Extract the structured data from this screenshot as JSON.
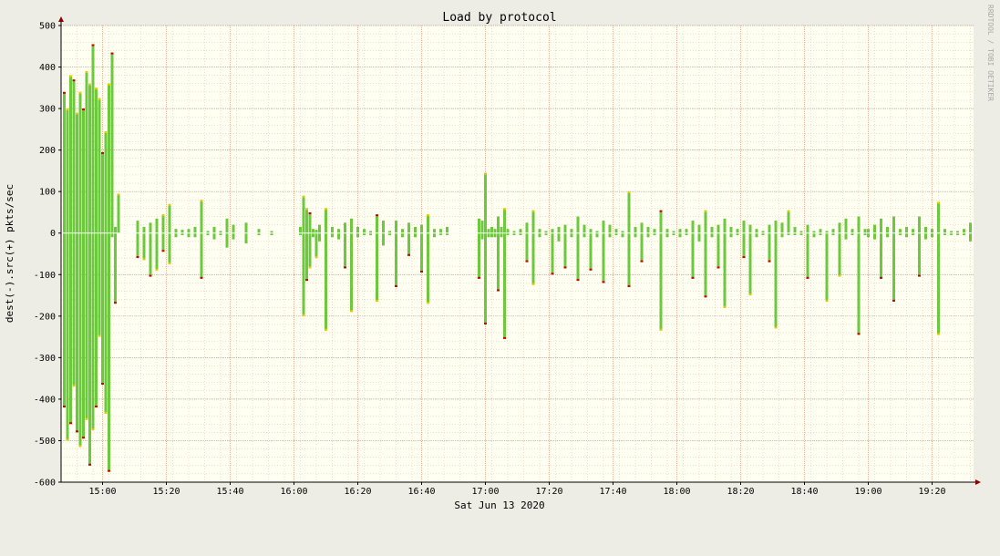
{
  "chart_data": {
    "type": "bar",
    "title": "Load by protocol",
    "ylabel": "dest(-).src(+)  pkts/sec",
    "xlabel": "Sat Jun 13 2020",
    "watermark": "RRDTOOL / TOBI OETIKER",
    "ylim": [
      -600,
      500
    ],
    "y_ticks": [
      500,
      400,
      300,
      200,
      100,
      0,
      -100,
      -200,
      -300,
      -400,
      -500,
      -600
    ],
    "y_tick_labels": [
      "500",
      "400",
      "300",
      "200",
      "100",
      "0",
      "-100",
      "-200",
      "-300",
      "-400",
      "-500",
      "-600"
    ],
    "x_start": "14:47",
    "x_end": "19:33",
    "x_ticks": [
      "15:00",
      "15:20",
      "15:40",
      "16:00",
      "16:20",
      "16:40",
      "17:00",
      "17:20",
      "17:40",
      "18:00",
      "18:20",
      "18:40",
      "19:00",
      "19:20"
    ],
    "grid": true,
    "colors": {
      "main": "#6cc83c",
      "light": "#a4d870",
      "top": "#e8c800",
      "accent": "#cc0000",
      "background": "#fffff2",
      "grid": "#e8b8a8",
      "zero_line": "#ffffff"
    },
    "series": [
      {
        "x": [
          "14:48",
          "14:49",
          "14:50",
          "14:51",
          "14:52",
          "14:53",
          "14:54",
          "14:55",
          "14:56",
          "14:57",
          "14:58",
          "14:59",
          "15:00",
          "15:01",
          "15:02",
          "15:03",
          "15:04",
          "15:05",
          "15:06",
          "15:07"
        ],
        "src": [
          340,
          300,
          380,
          370,
          290,
          340,
          300,
          390,
          360,
          455,
          350,
          325,
          195,
          245,
          360,
          435,
          15,
          95,
          0,
          0
        ],
        "dest": [
          -420,
          -500,
          -460,
          -370,
          -480,
          -515,
          -495,
          -450,
          -560,
          -475,
          -420,
          -250,
          -365,
          -435,
          -575,
          -10,
          -170,
          0,
          0,
          0
        ]
      },
      {
        "x": [
          "15:11",
          "15:13",
          "15:15",
          "15:17",
          "15:19",
          "15:21",
          "15:23",
          "15:25",
          "15:27",
          "15:29",
          "15:31",
          "15:33",
          "15:35",
          "15:37",
          "15:39",
          "15:41",
          "15:43",
          "15:45",
          "15:47",
          "15:49",
          "15:51",
          "15:53",
          "15:55",
          "15:57"
        ],
        "src": [
          30,
          15,
          25,
          35,
          45,
          70,
          10,
          8,
          10,
          15,
          80,
          5,
          15,
          5,
          35,
          20,
          0,
          25,
          0,
          10,
          0,
          5,
          0,
          0
        ],
        "dest": [
          -60,
          -65,
          -105,
          -90,
          -45,
          -75,
          -10,
          -5,
          -10,
          -10,
          -110,
          -5,
          -15,
          -5,
          -35,
          -15,
          0,
          -25,
          0,
          -5,
          0,
          -5,
          0,
          0
        ]
      },
      {
        "x": [
          "16:02",
          "16:03",
          "16:04",
          "16:05",
          "16:06",
          "16:07",
          "16:08",
          "16:10",
          "16:12",
          "16:14",
          "16:16",
          "16:18",
          "16:20",
          "16:22",
          "16:24",
          "16:26",
          "16:28",
          "16:30",
          "16:32",
          "16:34",
          "16:36",
          "16:38",
          "16:40",
          "16:42",
          "16:44",
          "16:46",
          "16:48",
          "16:50",
          "16:52",
          "16:54",
          "16:56",
          "16:58"
        ],
        "src": [
          15,
          90,
          60,
          50,
          10,
          8,
          20,
          60,
          15,
          10,
          25,
          35,
          15,
          10,
          5,
          45,
          30,
          5,
          30,
          10,
          25,
          15,
          20,
          45,
          10,
          10,
          15,
          0,
          0,
          0,
          0,
          0
        ],
        "dest": [
          -5,
          -200,
          -115,
          -85,
          -10,
          -60,
          -20,
          -235,
          -10,
          -15,
          -85,
          -190,
          -10,
          -5,
          -5,
          -165,
          -30,
          -5,
          -130,
          -10,
          -55,
          -10,
          -95,
          -170,
          -10,
          -5,
          -5,
          0,
          0,
          0,
          0,
          0
        ]
      },
      {
        "x": [
          "16:58",
          "16:59",
          "17:00",
          "17:01",
          "17:02",
          "17:03",
          "17:04",
          "17:05",
          "17:06",
          "17:07",
          "17:09",
          "17:11",
          "17:13",
          "17:15",
          "17:17",
          "17:19",
          "17:21",
          "17:23",
          "17:25",
          "17:27",
          "17:29",
          "17:31",
          "17:33",
          "17:35",
          "17:37",
          "17:39",
          "17:41",
          "17:43",
          "17:45",
          "17:47",
          "17:49",
          "17:51",
          "17:53",
          "17:55",
          "17:57",
          "17:59"
        ],
        "src": [
          35,
          30,
          145,
          10,
          15,
          10,
          40,
          15,
          60,
          10,
          5,
          10,
          25,
          55,
          10,
          5,
          10,
          15,
          20,
          10,
          40,
          20,
          10,
          5,
          30,
          20,
          10,
          5,
          100,
          15,
          25,
          15,
          10,
          55,
          10,
          5
        ],
        "dest": [
          -110,
          -15,
          -220,
          -10,
          -10,
          -10,
          -140,
          -10,
          -255,
          -5,
          -5,
          -5,
          -70,
          -125,
          -10,
          -5,
          -100,
          -20,
          -85,
          -10,
          -115,
          -10,
          -90,
          -10,
          -120,
          -10,
          -5,
          -10,
          -130,
          -10,
          -70,
          -10,
          -5,
          -235,
          -10,
          -5
        ]
      },
      {
        "x": [
          "18:01",
          "18:03",
          "18:05",
          "18:07",
          "18:09",
          "18:11",
          "18:13",
          "18:15",
          "18:17",
          "18:19",
          "18:21",
          "18:23",
          "18:25",
          "18:27",
          "18:29",
          "18:31",
          "18:33",
          "18:35",
          "18:37",
          "18:39",
          "18:41",
          "18:43",
          "18:45",
          "18:47",
          "18:49",
          "18:51",
          "18:53",
          "18:55",
          "18:57",
          "18:59"
        ],
        "src": [
          10,
          10,
          30,
          20,
          55,
          15,
          20,
          35,
          15,
          10,
          30,
          20,
          10,
          5,
          20,
          30,
          25,
          55,
          15,
          5,
          20,
          5,
          10,
          5,
          10,
          25,
          35,
          10,
          40,
          10
        ],
        "dest": [
          -10,
          -5,
          -110,
          -20,
          -155,
          -10,
          -85,
          -180,
          -10,
          -5,
          -60,
          -150,
          -10,
          -5,
          -70,
          -230,
          -10,
          -5,
          -5,
          -5,
          -110,
          -10,
          -5,
          -165,
          -5,
          -105,
          -15,
          -5,
          -245,
          -5
        ]
      },
      {
        "x": [
          "19:00",
          "19:02",
          "19:04",
          "19:06",
          "19:08",
          "19:10",
          "19:12",
          "19:14",
          "19:16",
          "19:18",
          "19:20",
          "19:22",
          "19:24",
          "19:26",
          "19:28",
          "19:30",
          "19:32"
        ],
        "src": [
          10,
          20,
          35,
          15,
          40,
          10,
          15,
          10,
          40,
          15,
          10,
          75,
          10,
          5,
          5,
          10,
          25
        ],
        "dest": [
          -10,
          -15,
          -110,
          -10,
          -165,
          -5,
          -10,
          -5,
          -105,
          -15,
          -10,
          -245,
          -5,
          -5,
          -5,
          -5,
          -20
        ]
      }
    ]
  }
}
